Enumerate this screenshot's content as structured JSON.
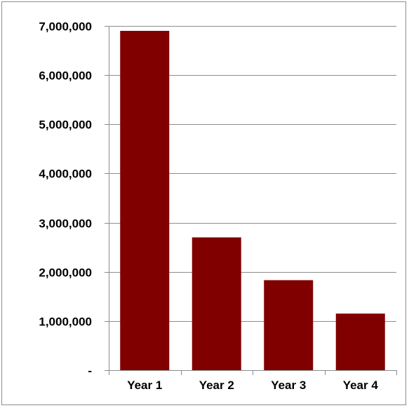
{
  "chart_data": {
    "type": "bar",
    "categories": [
      "Year 1",
      "Year 2",
      "Year 3",
      "Year 4"
    ],
    "values": [
      6900000,
      2700000,
      1830000,
      1150000
    ],
    "ylim": [
      0,
      7000000
    ],
    "yticks": [
      0,
      1000000,
      2000000,
      3000000,
      4000000,
      5000000,
      6000000,
      7000000
    ],
    "ytick_labels": [
      "-",
      "1,000,000",
      "2,000,000",
      "3,000,000",
      "4,000,000",
      "5,000,000",
      "6,000,000",
      "7,000,000"
    ],
    "title": "",
    "xlabel": "",
    "ylabel": "",
    "grid": true,
    "legend": false,
    "bar_color": "#800000",
    "grid_color": "#8c8c8c"
  }
}
